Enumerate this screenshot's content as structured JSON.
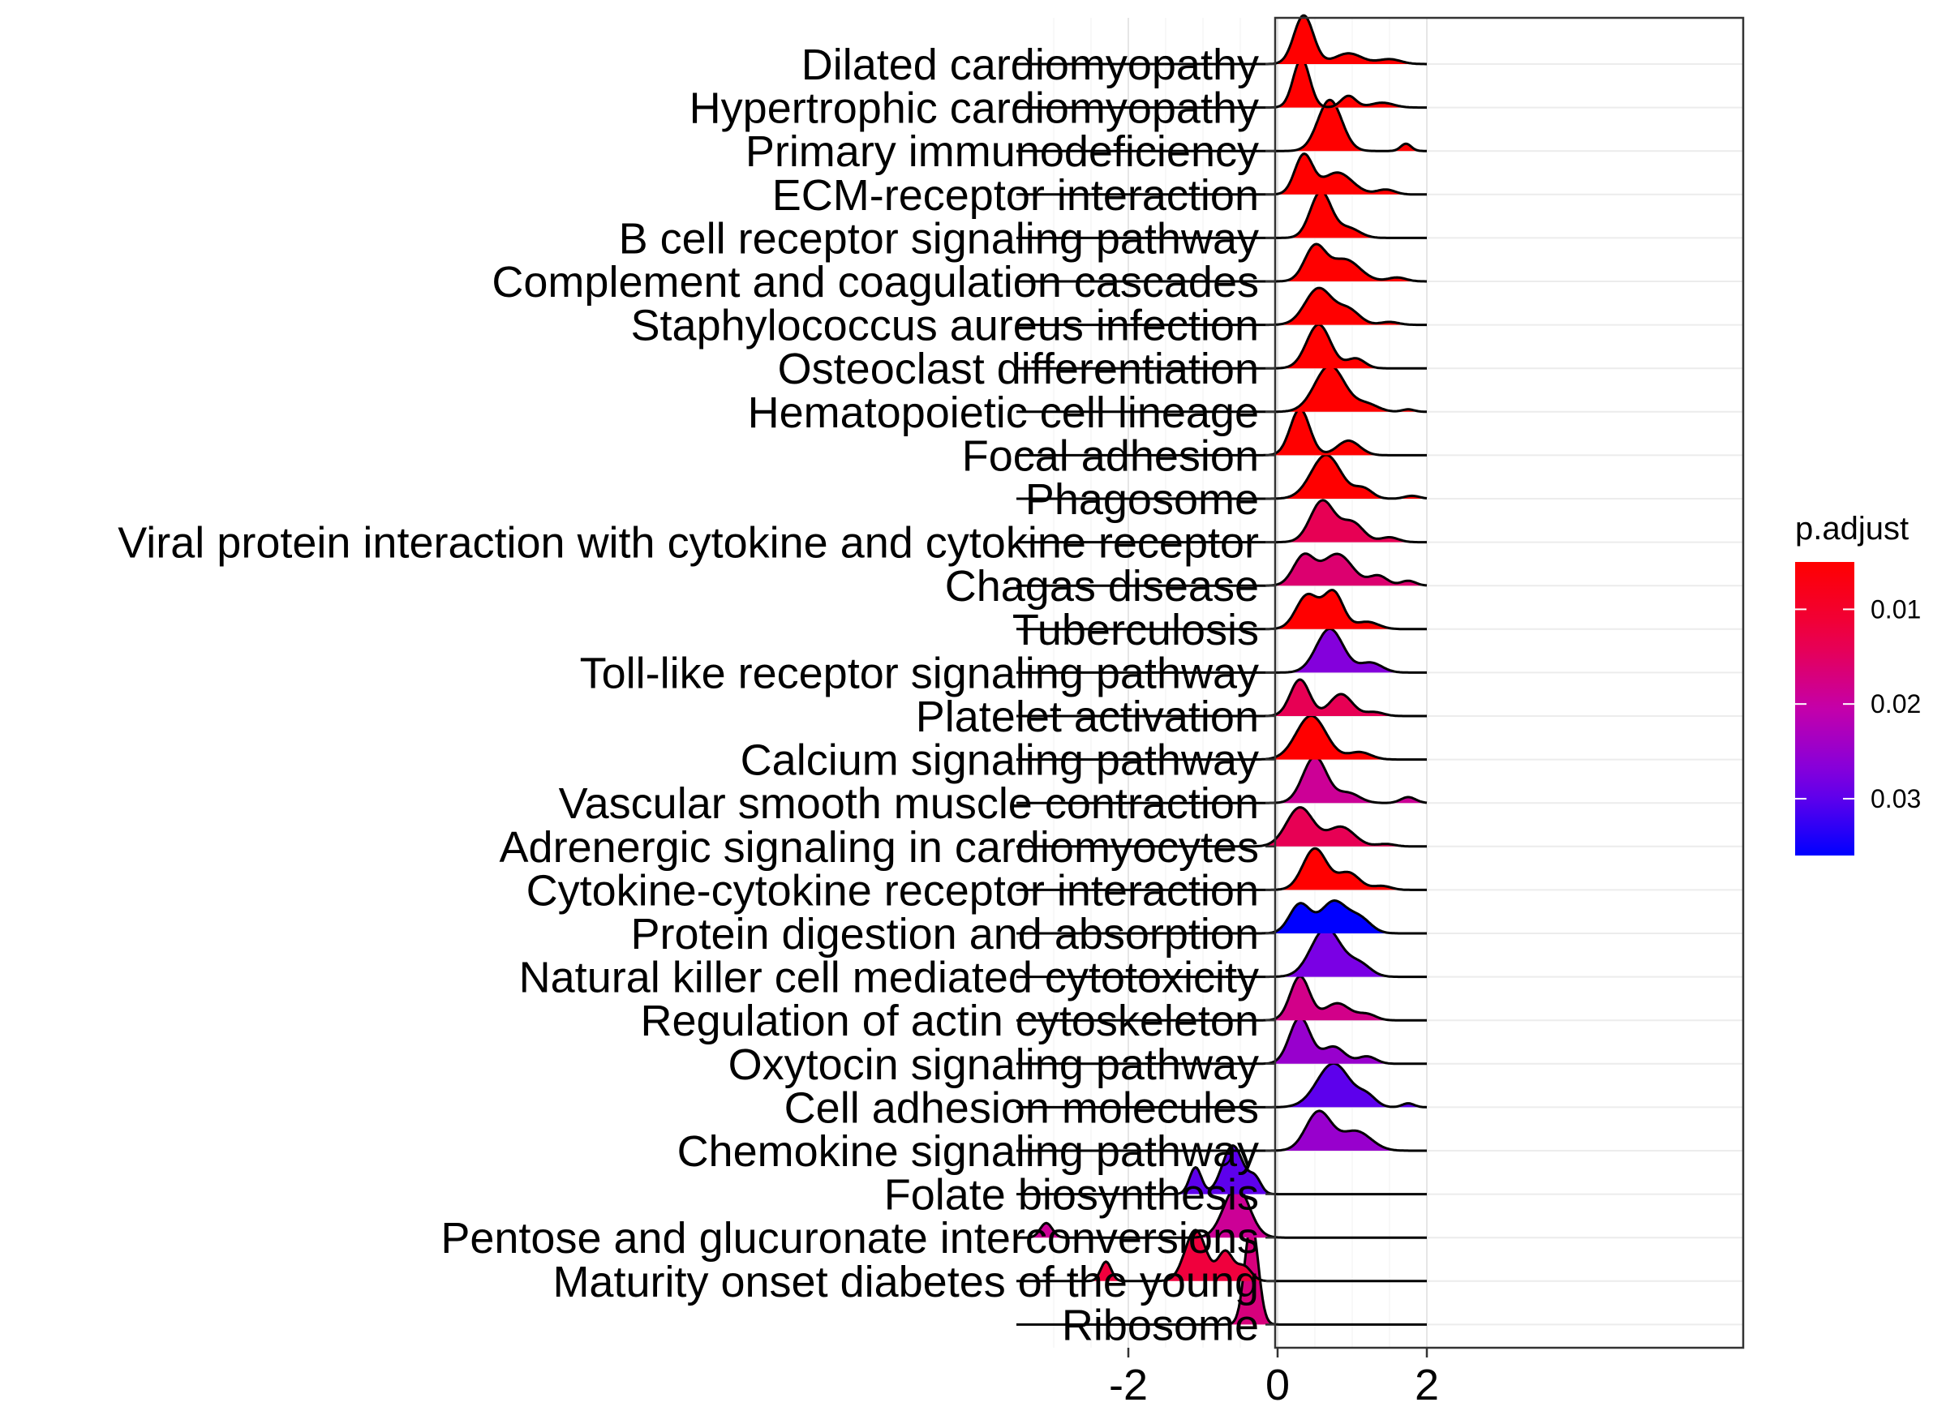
{
  "chart_data": {
    "type": "ridgeline",
    "xlabel": "",
    "ylabel": "",
    "xlim": [
      -3.5,
      2.3
    ],
    "xticks": [
      -2,
      0,
      2
    ],
    "xtick_labels": [
      "-2",
      "0",
      "2"
    ],
    "grid": true,
    "legend": {
      "title": "p.adjust",
      "placement": "right",
      "min": 0.005,
      "max": 0.036,
      "ticks": [
        0.01,
        0.02,
        0.03
      ],
      "tick_labels": [
        "0.01",
        "0.02",
        "0.03"
      ],
      "color_low_p": "#ff0000",
      "color_high_p": "#0000ff"
    },
    "categories": [
      "Dilated cardiomyopathy",
      "Hypertrophic cardiomyopathy",
      "Primary immunodeficiency",
      "ECM-receptor interaction",
      "B cell receptor signaling pathway",
      "Complement and coagulation cascades",
      "Staphylococcus aureus infection",
      "Osteoclast differentiation",
      "Hematopoietic cell lineage",
      "Focal adhesion",
      "Phagosome",
      "Viral protein interaction with cytokine and cytokine receptor",
      "Chagas disease",
      "Tuberculosis",
      "Toll-like receptor signaling pathway",
      "Platelet activation",
      "Calcium signaling pathway",
      "Vascular smooth muscle contraction",
      "Adrenergic signaling in cardiomyocytes",
      "Cytokine-cytokine receptor interaction",
      "Protein digestion and absorption",
      "Natural killer cell mediated cytotoxicity",
      "Regulation of actin cytoskeleton",
      "Oxytocin signaling pathway",
      "Cell adhesion molecules",
      "Chemokine signaling pathway",
      "Folate biosynthesis",
      "Pentose and glucuronate interconversions",
      "Maturity onset diabetes of the young",
      "Ribosome"
    ],
    "series": [
      {
        "p_adjust": 0.005,
        "peaks": [
          [
            0.35,
            1.0,
            0.13
          ],
          [
            0.95,
            0.22,
            0.18
          ],
          [
            1.5,
            0.1,
            0.15
          ]
        ]
      },
      {
        "p_adjust": 0.005,
        "peaks": [
          [
            0.32,
            1.0,
            0.11
          ],
          [
            0.95,
            0.24,
            0.1
          ],
          [
            1.4,
            0.1,
            0.15
          ]
        ]
      },
      {
        "p_adjust": 0.005,
        "peaks": [
          [
            0.7,
            1.05,
            0.16
          ],
          [
            1.72,
            0.15,
            0.07
          ]
        ]
      },
      {
        "p_adjust": 0.005,
        "peaks": [
          [
            0.35,
            0.8,
            0.12
          ],
          [
            0.8,
            0.45,
            0.2
          ],
          [
            1.45,
            0.1,
            0.12
          ]
        ]
      },
      {
        "p_adjust": 0.005,
        "peaks": [
          [
            0.58,
            0.95,
            0.14
          ],
          [
            0.95,
            0.2,
            0.15
          ]
        ]
      },
      {
        "p_adjust": 0.005,
        "peaks": [
          [
            0.5,
            0.7,
            0.14
          ],
          [
            0.9,
            0.45,
            0.2
          ],
          [
            1.6,
            0.08,
            0.12
          ]
        ]
      },
      {
        "p_adjust": 0.005,
        "peaks": [
          [
            0.55,
            0.75,
            0.18
          ],
          [
            0.95,
            0.3,
            0.15
          ],
          [
            1.5,
            0.06,
            0.12
          ]
        ]
      },
      {
        "p_adjust": 0.005,
        "peaks": [
          [
            0.55,
            0.9,
            0.16
          ],
          [
            1.05,
            0.2,
            0.12
          ]
        ]
      },
      {
        "p_adjust": 0.005,
        "peaks": [
          [
            0.7,
            0.95,
            0.2
          ],
          [
            1.2,
            0.15,
            0.15
          ],
          [
            1.75,
            0.05,
            0.08
          ]
        ]
      },
      {
        "p_adjust": 0.005,
        "peaks": [
          [
            0.3,
            0.95,
            0.13
          ],
          [
            0.95,
            0.3,
            0.15
          ]
        ]
      },
      {
        "p_adjust": 0.005,
        "peaks": [
          [
            0.65,
            0.9,
            0.2
          ],
          [
            1.15,
            0.2,
            0.12
          ],
          [
            1.8,
            0.06,
            0.1
          ]
        ]
      },
      {
        "p_adjust": 0.014,
        "peaks": [
          [
            0.6,
            0.85,
            0.16
          ],
          [
            1.0,
            0.4,
            0.15
          ],
          [
            1.5,
            0.1,
            0.12
          ]
        ]
      },
      {
        "p_adjust": 0.016,
        "peaks": [
          [
            0.35,
            0.6,
            0.14
          ],
          [
            0.8,
            0.65,
            0.2
          ],
          [
            1.35,
            0.2,
            0.12
          ],
          [
            1.75,
            0.1,
            0.1
          ]
        ]
      },
      {
        "p_adjust": 0.005,
        "peaks": [
          [
            0.4,
            0.7,
            0.15
          ],
          [
            0.75,
            0.75,
            0.13
          ],
          [
            1.2,
            0.15,
            0.15
          ]
        ]
      },
      {
        "p_adjust": 0.027,
        "peaks": [
          [
            0.7,
            0.9,
            0.18
          ],
          [
            1.25,
            0.2,
            0.15
          ]
        ]
      },
      {
        "p_adjust": 0.014,
        "peaks": [
          [
            0.3,
            0.75,
            0.13
          ],
          [
            0.85,
            0.45,
            0.15
          ],
          [
            1.3,
            0.08,
            0.12
          ]
        ]
      },
      {
        "p_adjust": 0.005,
        "peaks": [
          [
            0.45,
            0.9,
            0.2
          ],
          [
            1.1,
            0.15,
            0.15
          ]
        ]
      },
      {
        "p_adjust": 0.019,
        "peaks": [
          [
            0.5,
            0.95,
            0.16
          ],
          [
            0.95,
            0.2,
            0.15
          ],
          [
            1.75,
            0.12,
            0.1
          ]
        ]
      },
      {
        "p_adjust": 0.014,
        "peaks": [
          [
            0.3,
            0.8,
            0.18
          ],
          [
            0.85,
            0.4,
            0.18
          ],
          [
            1.45,
            0.05,
            0.12
          ]
        ]
      },
      {
        "p_adjust": 0.005,
        "peaks": [
          [
            0.5,
            0.85,
            0.16
          ],
          [
            0.95,
            0.35,
            0.15
          ],
          [
            1.4,
            0.08,
            0.12
          ]
        ]
      },
      {
        "p_adjust": 0.036,
        "peaks": [
          [
            0.3,
            0.6,
            0.14
          ],
          [
            0.75,
            0.65,
            0.17
          ],
          [
            1.1,
            0.3,
            0.15
          ]
        ]
      },
      {
        "p_adjust": 0.028,
        "peaks": [
          [
            0.65,
            1.0,
            0.2
          ],
          [
            1.1,
            0.25,
            0.15
          ]
        ]
      },
      {
        "p_adjust": 0.018,
        "peaks": [
          [
            0.3,
            0.9,
            0.13
          ],
          [
            0.8,
            0.35,
            0.17
          ],
          [
            1.2,
            0.12,
            0.12
          ]
        ]
      },
      {
        "p_adjust": 0.025,
        "peaks": [
          [
            0.3,
            0.95,
            0.14
          ],
          [
            0.75,
            0.35,
            0.15
          ],
          [
            1.2,
            0.15,
            0.12
          ]
        ]
      },
      {
        "p_adjust": 0.03,
        "peaks": [
          [
            0.75,
            0.9,
            0.22
          ],
          [
            1.2,
            0.2,
            0.12
          ],
          [
            1.75,
            0.08,
            0.08
          ]
        ]
      },
      {
        "p_adjust": 0.025,
        "peaks": [
          [
            0.55,
            0.8,
            0.17
          ],
          [
            1.05,
            0.4,
            0.2
          ]
        ]
      },
      {
        "p_adjust": 0.03,
        "peaks": [
          [
            -1.1,
            0.55,
            0.08
          ],
          [
            -0.6,
            1.0,
            0.14
          ],
          [
            -0.3,
            0.3,
            0.08
          ]
        ]
      },
      {
        "p_adjust": 0.019,
        "peaks": [
          [
            -3.1,
            0.3,
            0.08
          ],
          [
            -0.55,
            1.05,
            0.17
          ]
        ]
      },
      {
        "p_adjust": 0.012,
        "peaks": [
          [
            -2.3,
            0.4,
            0.07
          ],
          [
            -1.1,
            1.05,
            0.14
          ],
          [
            -0.7,
            0.6,
            0.1
          ],
          [
            -0.45,
            0.3,
            0.1
          ]
        ]
      },
      {
        "p_adjust": 0.017,
        "peaks": [
          [
            -0.35,
            2.1,
            0.09
          ]
        ]
      }
    ]
  }
}
